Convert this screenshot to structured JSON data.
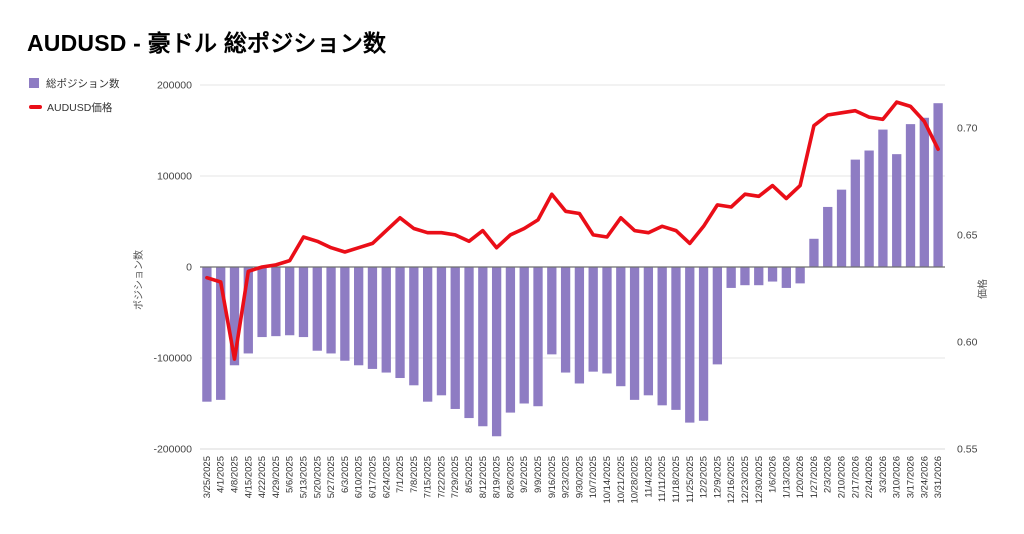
{
  "header": {
    "title": "AUDUSD - 豪ドル 総ポジション数"
  },
  "legend": [
    {
      "label": "総ポジション数",
      "color": "#8e7cc3",
      "marker": "square"
    },
    {
      "label": "AUDUSD価格",
      "color": "#ea0e18",
      "marker": "line"
    }
  ],
  "chart_data": {
    "type": "bar",
    "subtype": "dual-axis bar+line",
    "title": "AUDUSD - 豪ドル 総ポジション数",
    "grid": true,
    "legend_position": "top-left",
    "categories": [
      "3/25/2025",
      "4/1/2025",
      "4/8/2025",
      "4/15/2025",
      "4/22/2025",
      "4/29/2025",
      "5/6/2025",
      "5/13/2025",
      "5/20/2025",
      "5/27/2025",
      "6/3/2025",
      "6/10/2025",
      "6/17/2025",
      "6/24/2025",
      "7/1/2025",
      "7/8/2025",
      "7/15/2025",
      "7/22/2025",
      "7/29/2025",
      "8/5/2025",
      "8/12/2025",
      "8/19/2025",
      "8/26/2025",
      "9/2/2025",
      "9/9/2025",
      "9/16/2025",
      "9/23/2025",
      "9/30/2025",
      "10/7/2025",
      "10/14/2025",
      "10/21/2025",
      "10/28/2025",
      "11/4/2025",
      "11/11/2025",
      "11/18/2025",
      "11/25/2025",
      "12/2/2025",
      "12/9/2025",
      "12/16/2025",
      "12/23/2025",
      "12/30/2025",
      "1/6/2026",
      "1/13/2026",
      "1/20/2026",
      "1/27/2026",
      "2/3/2026",
      "2/10/2026",
      "2/17/2026",
      "2/24/2026",
      "3/3/2026",
      "3/10/2026",
      "3/17/2026",
      "3/24/2026",
      "3/31/2026"
    ],
    "series": [
      {
        "name": "総ポジション数",
        "type": "bar",
        "axis": "left",
        "color": "#8e7cc3",
        "values": [
          -148000,
          -146000,
          -108000,
          -95000,
          -77000,
          -76000,
          -75000,
          -77000,
          -92000,
          -95000,
          -103000,
          -108000,
          -112000,
          -116000,
          -122000,
          -130000,
          -148000,
          -141000,
          -156000,
          -166000,
          -175000,
          -186000,
          -160000,
          -150000,
          -153000,
          -96000,
          -116000,
          -128000,
          -115000,
          -117000,
          -131000,
          -146000,
          -141000,
          -152000,
          -157000,
          -171000,
          -169000,
          -107000,
          -23000,
          -20000,
          -20000,
          -16000,
          -23000,
          -18000,
          31000,
          66000,
          85000,
          118000,
          128000,
          151000,
          124000,
          157000,
          164000,
          180000
        ]
      },
      {
        "name": "AUDUSD価格",
        "type": "line",
        "axis": "right",
        "color": "#ea0e18",
        "values": [
          0.63,
          0.628,
          0.592,
          0.633,
          0.635,
          0.636,
          0.638,
          0.649,
          0.647,
          0.644,
          0.642,
          0.644,
          0.646,
          0.652,
          0.658,
          0.653,
          0.651,
          0.651,
          0.65,
          0.647,
          0.652,
          0.644,
          0.65,
          0.653,
          0.657,
          0.669,
          0.661,
          0.66,
          0.65,
          0.649,
          0.658,
          0.652,
          0.651,
          0.654,
          0.652,
          0.646,
          0.654,
          0.664,
          0.663,
          0.669,
          0.668,
          0.673,
          0.667,
          0.673,
          0.701,
          0.706,
          0.707,
          0.708,
          0.705,
          0.704,
          0.712,
          0.71,
          0.703,
          0.69
        ]
      }
    ],
    "left_axis": {
      "title": "ポジション数",
      "range": [
        -200000,
        200000
      ],
      "ticks": [
        200000,
        100000,
        0,
        -100000,
        -200000
      ]
    },
    "right_axis": {
      "title": "価格",
      "range": [
        0.55,
        0.72
      ],
      "ticks": [
        0.7,
        0.65,
        0.6,
        0.55
      ]
    },
    "colors": {
      "grid": "#e6e6e6",
      "zero_line": "#6f6f6f",
      "tick_label": "#444444",
      "x_label": "#333333",
      "axis_title": "#555555"
    }
  }
}
